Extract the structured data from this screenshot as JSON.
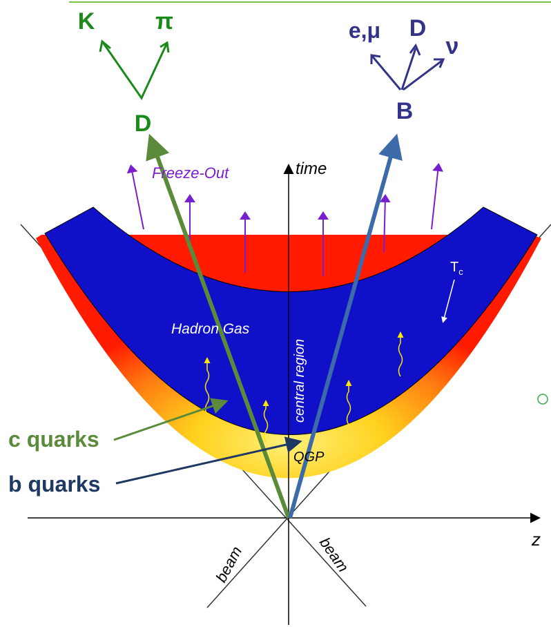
{
  "charm_decay": {
    "parent": "D",
    "products": [
      "K",
      "π"
    ]
  },
  "beauty_decay": {
    "parent": "B",
    "products": [
      "e,μ",
      "D",
      "ν"
    ]
  },
  "labels": {
    "freeze_out": "Freeze-Out",
    "time": "time",
    "tc_main": "T",
    "tc_sub": "c",
    "hadron_gas": "Hadron Gas",
    "central_region": "central region",
    "qgp": "QGP",
    "z": "z",
    "beam_left": "beam",
    "beam_right": "beam"
  },
  "callouts": {
    "c_quarks": "c quarks",
    "b_quarks": "b quarks"
  }
}
